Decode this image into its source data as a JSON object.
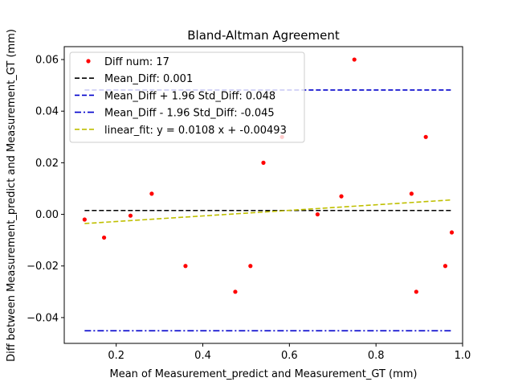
{
  "chart_data": {
    "type": "scatter",
    "title": "Bland-Altman Agreement",
    "xlabel": "Mean of Measurement_predict and Measurement_GT (mm)",
    "ylabel": "Diff between Measurement_predict and Measurement_GT (mm)",
    "xlim": [
      0.08,
      1.0
    ],
    "ylim": [
      -0.05,
      0.065
    ],
    "xticks": [
      0.2,
      0.4,
      0.6,
      0.8,
      1.0
    ],
    "xtick_labels": [
      "0.2",
      "0.4",
      "0.6",
      "0.8",
      "1.0"
    ],
    "yticks": [
      -0.04,
      -0.02,
      0.0,
      0.02,
      0.04,
      0.06
    ],
    "ytick_labels": [
      "−0.04",
      "−0.02",
      "0.00",
      "0.02",
      "0.04",
      "0.06"
    ],
    "grid": false,
    "legend_position": "top-left",
    "series": [
      {
        "name": "Diff num: 17",
        "kind": "scatter",
        "color": "#ff0000",
        "points": [
          {
            "x": 0.127,
            "y": -0.002
          },
          {
            "x": 0.172,
            "y": -0.009
          },
          {
            "x": 0.233,
            "y": -0.0005
          },
          {
            "x": 0.282,
            "y": 0.008
          },
          {
            "x": 0.36,
            "y": -0.02
          },
          {
            "x": 0.475,
            "y": -0.03
          },
          {
            "x": 0.51,
            "y": -0.02
          },
          {
            "x": 0.54,
            "y": 0.02
          },
          {
            "x": 0.583,
            "y": 0.03
          },
          {
            "x": 0.665,
            "y": 0.0
          },
          {
            "x": 0.72,
            "y": 0.007
          },
          {
            "x": 0.75,
            "y": 0.06
          },
          {
            "x": 0.882,
            "y": 0.008
          },
          {
            "x": 0.893,
            "y": -0.03
          },
          {
            "x": 0.915,
            "y": 0.03
          },
          {
            "x": 0.96,
            "y": -0.02
          },
          {
            "x": 0.975,
            "y": -0.007
          }
        ]
      },
      {
        "name": "Mean_Diff: 0.001",
        "kind": "hline",
        "color": "#000000",
        "dash": "dashed",
        "y": 0.0015,
        "x_range": [
          0.127,
          0.975
        ]
      },
      {
        "name": "Mean_Diff + 1.96 Std_Diff: 0.048",
        "kind": "hline",
        "color": "#0000cc",
        "dash": "dashed",
        "y": 0.0482,
        "x_range": [
          0.127,
          0.975
        ]
      },
      {
        "name": "Mean_Diff - 1.96 Std_Diff: -0.045",
        "kind": "hline",
        "color": "#0000cc",
        "dash": "dashdot",
        "y": -0.0451,
        "x_range": [
          0.127,
          0.975
        ]
      },
      {
        "name": "linear_fit: y = 0.0108 x + -0.00493",
        "kind": "fit",
        "color": "#bfbf00",
        "dash": "dashed",
        "slope": 0.0108,
        "intercept": -0.00493,
        "x_range": [
          0.127,
          0.975
        ]
      }
    ]
  }
}
